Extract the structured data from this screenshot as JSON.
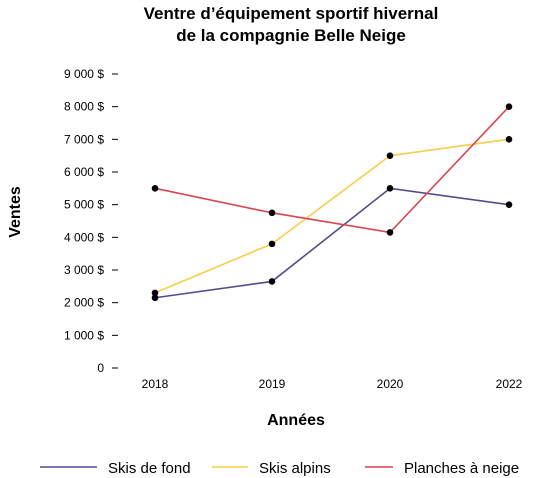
{
  "chart_data": {
    "type": "line",
    "title_lines": [
      "Ventre d’équipement sportif hivernal",
      "de la compagnie Belle Neige"
    ],
    "xlabel": "Années",
    "ylabel": "Ventes",
    "categories": [
      "2018",
      "2019",
      "2020",
      "2022"
    ],
    "y_ticks": [
      "0",
      "1 000 $",
      "2 000 $",
      "3 000 $",
      "4 000 $",
      "5 000 $",
      "6 000 $",
      "7 000 $",
      "8 000 $",
      "9 000 $"
    ],
    "ylim": [
      0,
      9000
    ],
    "grid": false,
    "legend_position": "bottom",
    "series": [
      {
        "name": "Skis de fond",
        "color": "#524c8f",
        "values": [
          2150,
          2650,
          5500,
          5000
        ]
      },
      {
        "name": "Skis alpins",
        "color": "#f5cf4a",
        "values": [
          2300,
          3800,
          6500,
          7000
        ]
      },
      {
        "name": "Planches à neige",
        "color": "#d9454f",
        "values": [
          5500,
          4750,
          4150,
          8000
        ]
      }
    ],
    "marker_color": "#000000"
  }
}
